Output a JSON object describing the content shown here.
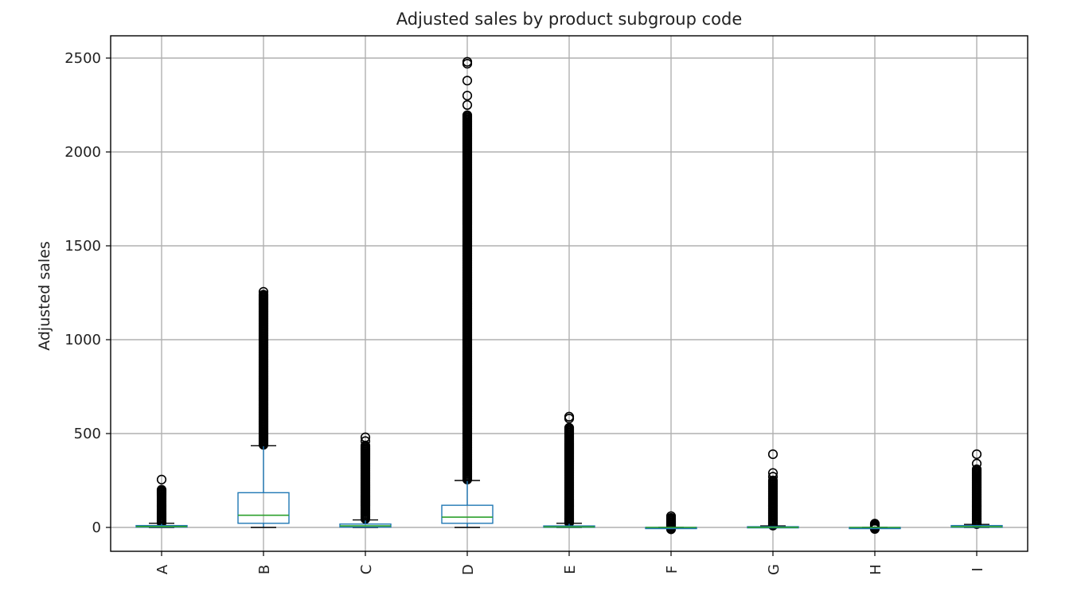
{
  "chart_data": {
    "type": "box",
    "title": "Adjusted sales by product subgroup code",
    "xlabel": "",
    "ylabel": "Adjusted sales",
    "ylim": [
      -125,
      2610
    ],
    "yticks": [
      0,
      500,
      1000,
      1500,
      2000,
      2500
    ],
    "grid": true,
    "colors": {
      "box": "#1f77b4",
      "median": "#2ca02c",
      "flier": "#000000"
    },
    "categories": [
      "A",
      "B",
      "C",
      "D",
      "E",
      "F",
      "G",
      "H",
      "I"
    ],
    "boxes": [
      {
        "label": "A",
        "q1": 2,
        "median": 5,
        "q3": 10,
        "whisker_low": 0,
        "whisker_high": 22,
        "flier_min": 25,
        "flier_max_dense": 205,
        "extra_outliers": [
          255
        ]
      },
      {
        "label": "B",
        "q1": 22,
        "median": 65,
        "q3": 185,
        "whisker_low": 0,
        "whisker_high": 435,
        "flier_min": 440,
        "flier_max_dense": 1240,
        "extra_outliers": [
          1255
        ]
      },
      {
        "label": "C",
        "q1": 2,
        "median": 8,
        "q3": 18,
        "whisker_low": 0,
        "whisker_high": 40,
        "flier_min": 45,
        "flier_max_dense": 440,
        "extra_outliers": [
          460,
          480
        ]
      },
      {
        "label": "D",
        "q1": 22,
        "median": 55,
        "q3": 118,
        "whisker_low": 0,
        "whisker_high": 250,
        "flier_min": 255,
        "flier_max_dense": 2200,
        "extra_outliers": [
          2250,
          2300,
          2380,
          2470,
          2480
        ]
      },
      {
        "label": "E",
        "q1": 1,
        "median": 3,
        "q3": 8,
        "whisker_low": 0,
        "whisker_high": 22,
        "flier_min": 25,
        "flier_max_dense": 535,
        "extra_outliers": [
          580,
          590
        ]
      },
      {
        "label": "F",
        "q1": 0,
        "median": 0,
        "q3": 0,
        "whisker_low": 0,
        "whisker_high": 0,
        "flier_min": -10,
        "flier_max_dense": 55,
        "extra_outliers": [
          60
        ]
      },
      {
        "label": "G",
        "q1": 0,
        "median": 1,
        "q3": 4,
        "whisker_low": 0,
        "whisker_high": 8,
        "flier_min": 10,
        "flier_max_dense": 250,
        "extra_outliers": [
          270,
          290,
          390
        ]
      },
      {
        "label": "H",
        "q1": 0,
        "median": 0,
        "q3": 0,
        "whisker_low": 0,
        "whisker_high": 0,
        "flier_min": -8,
        "flier_max_dense": 18,
        "extra_outliers": [
          20
        ]
      },
      {
        "label": "I",
        "q1": 1,
        "median": 4,
        "q3": 10,
        "whisker_low": 0,
        "whisker_high": 16,
        "flier_min": 18,
        "flier_max_dense": 310,
        "extra_outliers": [
          340,
          390
        ]
      }
    ]
  }
}
